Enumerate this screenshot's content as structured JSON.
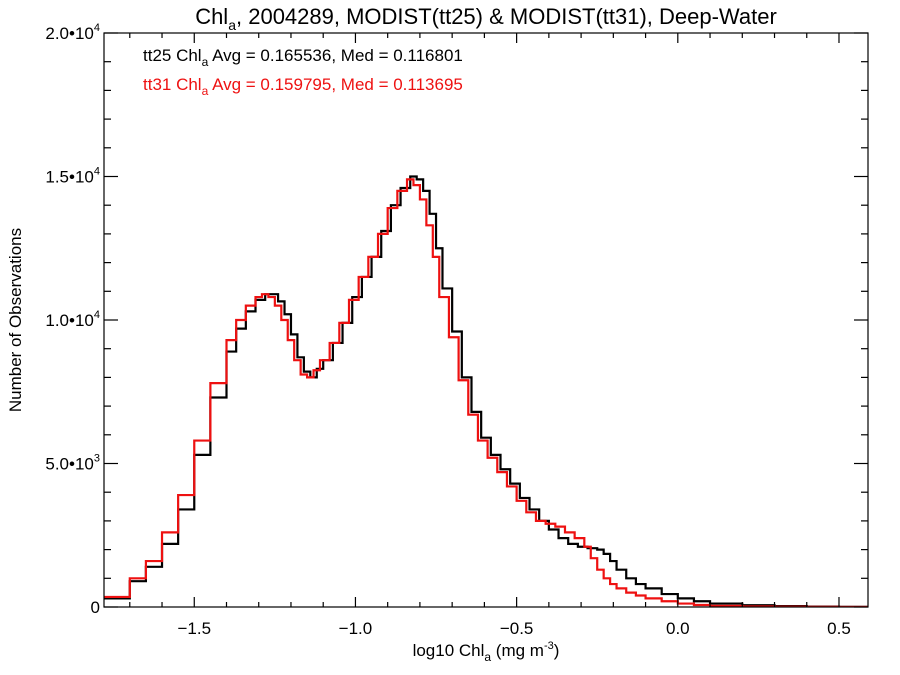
{
  "chart_data": {
    "type": "line",
    "step": true,
    "title_parts": [
      "Chl",
      "a",
      ", 2004289, MODIST(tt25) & MODIST(tt31), Deep-Water"
    ],
    "xlabel_parts": [
      "log10 Chl",
      "a",
      " (mg m",
      "-3",
      ")"
    ],
    "ylabel": "Number of Observations",
    "xlim": [
      -1.78,
      0.59
    ],
    "ylim": [
      0,
      20000
    ],
    "x_ticks": [
      {
        "value": -1.5,
        "label": "−1.5"
      },
      {
        "value": -1.0,
        "label": "−1.0"
      },
      {
        "value": -0.5,
        "label": "−0.5"
      },
      {
        "value": 0.0,
        "label": "0.0"
      },
      {
        "value": 0.5,
        "label": "0.5"
      }
    ],
    "y_ticks": [
      {
        "value": 0,
        "mant": "0",
        "exp": ""
      },
      {
        "value": 5000,
        "mant": "5.0•10",
        "exp": "3"
      },
      {
        "value": 10000,
        "mant": "1.0•10",
        "exp": "4"
      },
      {
        "value": 15000,
        "mant": "1.5•10",
        "exp": "4"
      },
      {
        "value": 20000,
        "mant": "2.0•10",
        "exp": "4"
      }
    ],
    "grid": false,
    "annotations": [
      {
        "color": "#000000",
        "parts": [
          "tt25 Chl",
          "a",
          " Avg = 0.165536, Med = 0.116801"
        ]
      },
      {
        "color": "#ee1111",
        "parts": [
          "tt31 Chl",
          "a",
          " Avg = 0.159795, Med = 0.113695"
        ]
      }
    ],
    "series": [
      {
        "name": "tt25",
        "color": "#000000",
        "x": [
          -1.78,
          -1.7,
          -1.65,
          -1.6,
          -1.55,
          -1.5,
          -1.45,
          -1.4,
          -1.37,
          -1.34,
          -1.31,
          -1.28,
          -1.26,
          -1.24,
          -1.22,
          -1.2,
          -1.18,
          -1.16,
          -1.14,
          -1.12,
          -1.1,
          -1.07,
          -1.04,
          -1.01,
          -0.98,
          -0.95,
          -0.92,
          -0.89,
          -0.86,
          -0.83,
          -0.81,
          -0.79,
          -0.77,
          -0.75,
          -0.73,
          -0.7,
          -0.67,
          -0.64,
          -0.61,
          -0.58,
          -0.55,
          -0.52,
          -0.49,
          -0.46,
          -0.43,
          -0.4,
          -0.37,
          -0.34,
          -0.31,
          -0.28,
          -0.25,
          -0.23,
          -0.21,
          -0.19,
          -0.16,
          -0.13,
          -0.1,
          -0.05,
          0.0,
          0.05,
          0.1,
          0.2,
          0.3,
          0.4,
          0.5,
          0.59
        ],
        "values": [
          300,
          900,
          1400,
          2200,
          3400,
          5300,
          7300,
          8900,
          9700,
          10300,
          10700,
          10900,
          10900,
          10650,
          10200,
          9500,
          8700,
          8200,
          8000,
          8300,
          8600,
          9200,
          9900,
          10800,
          11500,
          12200,
          13100,
          14000,
          14600,
          15000,
          14900,
          14500,
          13700,
          12500,
          11100,
          9600,
          8000,
          6800,
          5900,
          5300,
          4800,
          4300,
          3800,
          3400,
          3000,
          2700,
          2400,
          2200,
          2100,
          2050,
          2000,
          1850,
          1600,
          1300,
          1000,
          800,
          650,
          450,
          300,
          200,
          120,
          60,
          30,
          15,
          5,
          0
        ]
      },
      {
        "name": "tt31",
        "color": "#ee1111",
        "x": [
          -1.78,
          -1.7,
          -1.65,
          -1.6,
          -1.55,
          -1.5,
          -1.45,
          -1.4,
          -1.37,
          -1.34,
          -1.31,
          -1.29,
          -1.27,
          -1.25,
          -1.23,
          -1.21,
          -1.19,
          -1.17,
          -1.15,
          -1.13,
          -1.11,
          -1.08,
          -1.05,
          -1.02,
          -0.99,
          -0.96,
          -0.93,
          -0.9,
          -0.87,
          -0.84,
          -0.82,
          -0.8,
          -0.78,
          -0.76,
          -0.74,
          -0.71,
          -0.68,
          -0.65,
          -0.62,
          -0.59,
          -0.56,
          -0.53,
          -0.5,
          -0.47,
          -0.44,
          -0.41,
          -0.38,
          -0.35,
          -0.32,
          -0.29,
          -0.27,
          -0.25,
          -0.23,
          -0.21,
          -0.19,
          -0.16,
          -0.13,
          -0.1,
          -0.05,
          0.0,
          0.05,
          0.1,
          0.2,
          0.3,
          0.4,
          0.5,
          0.59
        ],
        "values": [
          350,
          1000,
          1600,
          2600,
          3900,
          5800,
          7800,
          9300,
          10000,
          10500,
          10800,
          10900,
          10800,
          10500,
          10000,
          9300,
          8600,
          8100,
          8000,
          8250,
          8600,
          9200,
          9900,
          10700,
          11500,
          12200,
          13000,
          13900,
          14500,
          14900,
          14700,
          14200,
          13300,
          12200,
          10800,
          9400,
          7900,
          6700,
          5800,
          5200,
          4700,
          4200,
          3700,
          3300,
          3000,
          2900,
          2800,
          2600,
          2400,
          2100,
          1700,
          1300,
          1000,
          800,
          650,
          500,
          400,
          300,
          200,
          120,
          70,
          40,
          20,
          10,
          5,
          0,
          0
        ]
      }
    ]
  }
}
